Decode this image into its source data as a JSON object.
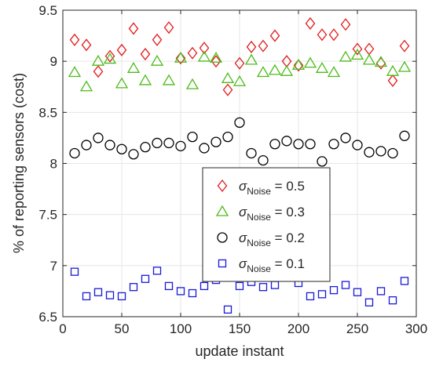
{
  "chart_data": {
    "type": "scatter",
    "xlabel": "update instant",
    "ylabel": "% of reporting sensors (cost)",
    "xlim": [
      0,
      300
    ],
    "ylim": [
      6.5,
      9.5
    ],
    "x_ticks": [
      "0",
      "50",
      "100",
      "150",
      "200",
      "250",
      "300"
    ],
    "y_ticks": [
      "6.5",
      "7",
      "7.5",
      "8",
      "8.5",
      "9",
      "9.5"
    ],
    "grid": true,
    "legend_placement": "center-right",
    "x": [
      10,
      20,
      30,
      40,
      50,
      60,
      70,
      80,
      90,
      100,
      110,
      120,
      130,
      140,
      150,
      160,
      170,
      180,
      190,
      200,
      210,
      220,
      230,
      240,
      250,
      260,
      270,
      280,
      290
    ],
    "series": [
      {
        "name_main": "σ",
        "name_sub": "Noise",
        "name_tail": " = 0.5",
        "marker": "diamond",
        "color": "#e41a1c",
        "values": [
          9.21,
          9.16,
          8.9,
          9.05,
          9.11,
          9.32,
          9.07,
          9.21,
          9.33,
          9.03,
          9.08,
          9.13,
          9.0,
          8.72,
          8.98,
          9.14,
          9.15,
          9.25,
          9.0,
          8.96,
          9.37,
          9.26,
          9.26,
          9.36,
          9.12,
          9.12,
          8.98,
          8.81,
          9.15
        ]
      },
      {
        "name_main": "σ",
        "name_sub": "Noise",
        "name_tail": " = 0.3",
        "marker": "triangle",
        "color": "#4dbb1a",
        "values": [
          8.89,
          8.75,
          9.0,
          9.02,
          8.78,
          8.93,
          8.81,
          9.0,
          8.81,
          9.03,
          8.77,
          9.04,
          9.03,
          8.83,
          8.8,
          9.01,
          8.89,
          8.91,
          8.9,
          8.96,
          8.98,
          8.93,
          8.89,
          9.04,
          9.06,
          9.01,
          8.99,
          8.9,
          8.94
        ]
      },
      {
        "name_main": "σ",
        "name_sub": "Noise",
        "name_tail": " = 0.2",
        "marker": "circle",
        "color": "#000000",
        "values": [
          8.1,
          8.18,
          8.25,
          8.18,
          8.14,
          8.09,
          8.16,
          8.2,
          8.2,
          8.17,
          8.26,
          8.15,
          8.21,
          8.26,
          8.4,
          8.1,
          8.03,
          8.19,
          8.22,
          8.19,
          8.19,
          8.02,
          8.19,
          8.25,
          8.18,
          8.11,
          8.12,
          8.1,
          8.27
        ]
      },
      {
        "name_main": "σ",
        "name_sub": "Noise",
        "name_tail": " = 0.1",
        "marker": "square",
        "color": "#1a1ad6",
        "values": [
          6.94,
          6.7,
          6.74,
          6.71,
          6.7,
          6.79,
          6.87,
          6.95,
          6.8,
          6.75,
          6.73,
          6.8,
          6.86,
          6.57,
          6.8,
          6.84,
          6.79,
          6.81,
          6.89,
          6.83,
          6.7,
          6.72,
          6.76,
          6.81,
          6.74,
          6.64,
          6.75,
          6.66,
          6.85
        ]
      }
    ]
  }
}
